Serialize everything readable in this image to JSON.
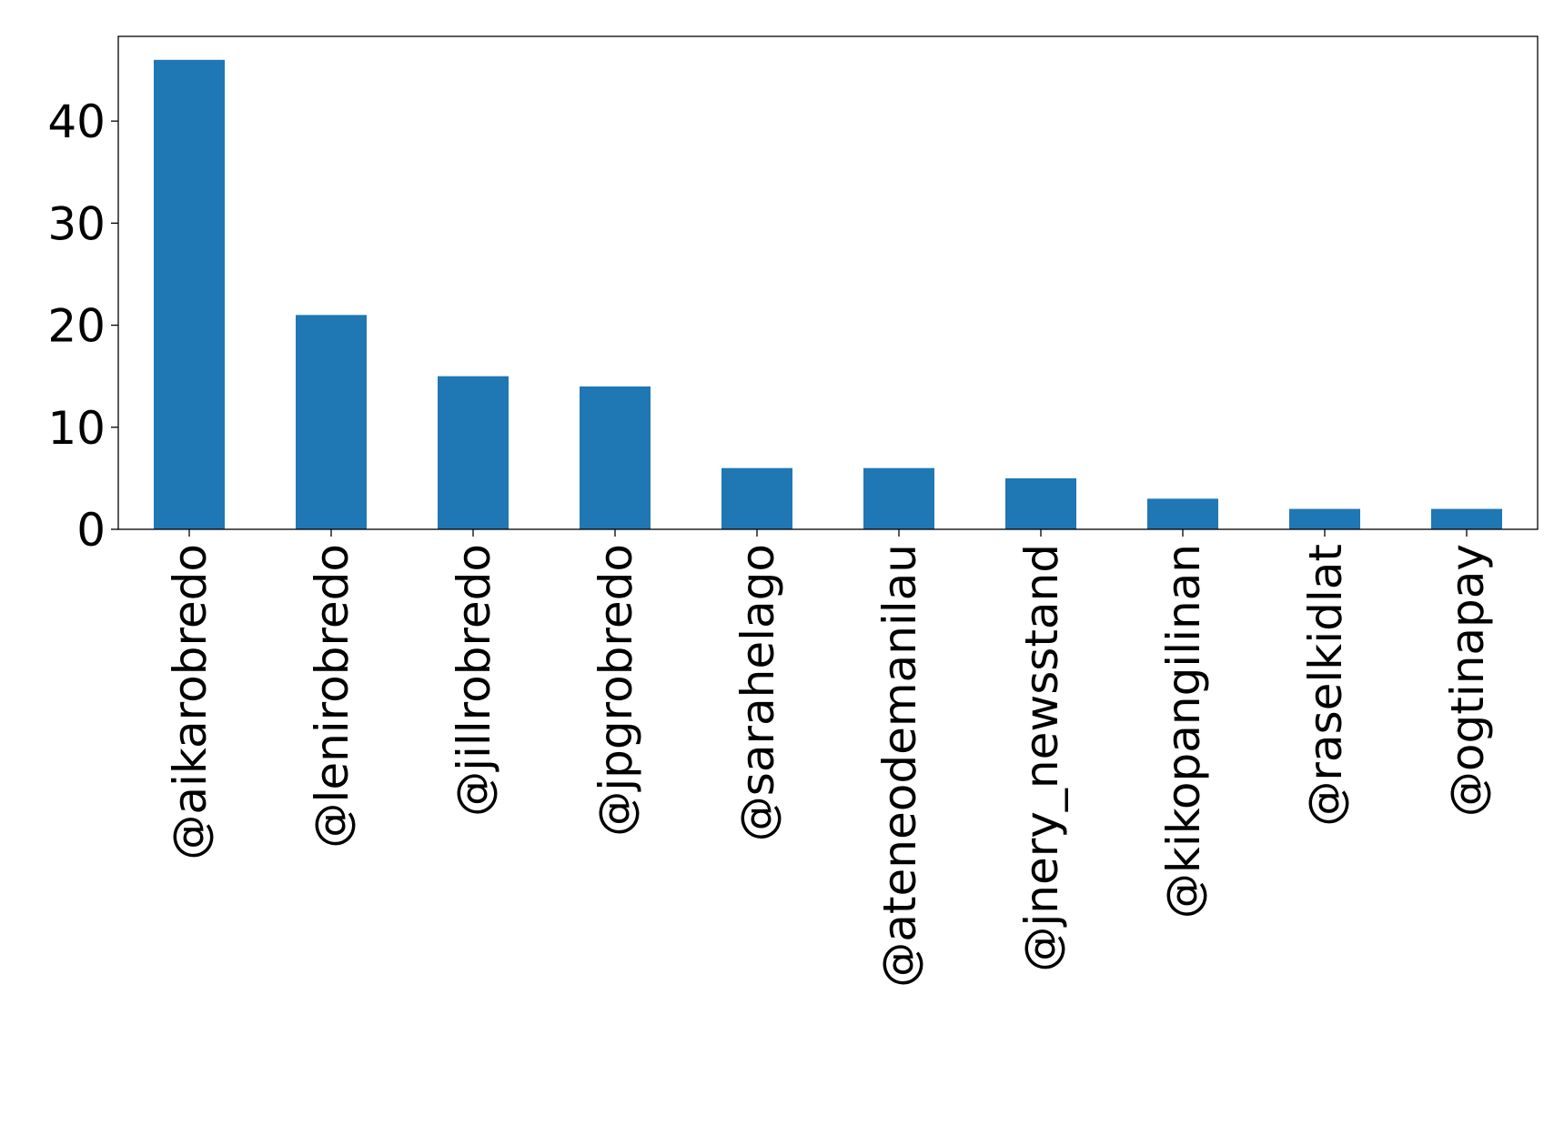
{
  "chart_data": {
    "type": "bar",
    "title": "",
    "xlabel": "",
    "ylabel": "",
    "categories": [
      "@aikarobredo",
      "@lenirobredo",
      "@jillrobredo",
      "@jpgrobredo",
      "@sarahelago",
      "@ateneodemanilau",
      "@jnery_newsstand",
      "@kikopangilinan",
      "@raselkidlat",
      "@ogtinapay"
    ],
    "values": [
      46,
      21,
      15,
      14,
      6,
      6,
      5,
      3,
      2,
      2
    ],
    "ylim": [
      0,
      48.3
    ],
    "yticks": [
      0,
      10,
      20,
      30,
      40
    ],
    "grid": false,
    "legend": "none",
    "bar_color": "#1f77b4"
  }
}
